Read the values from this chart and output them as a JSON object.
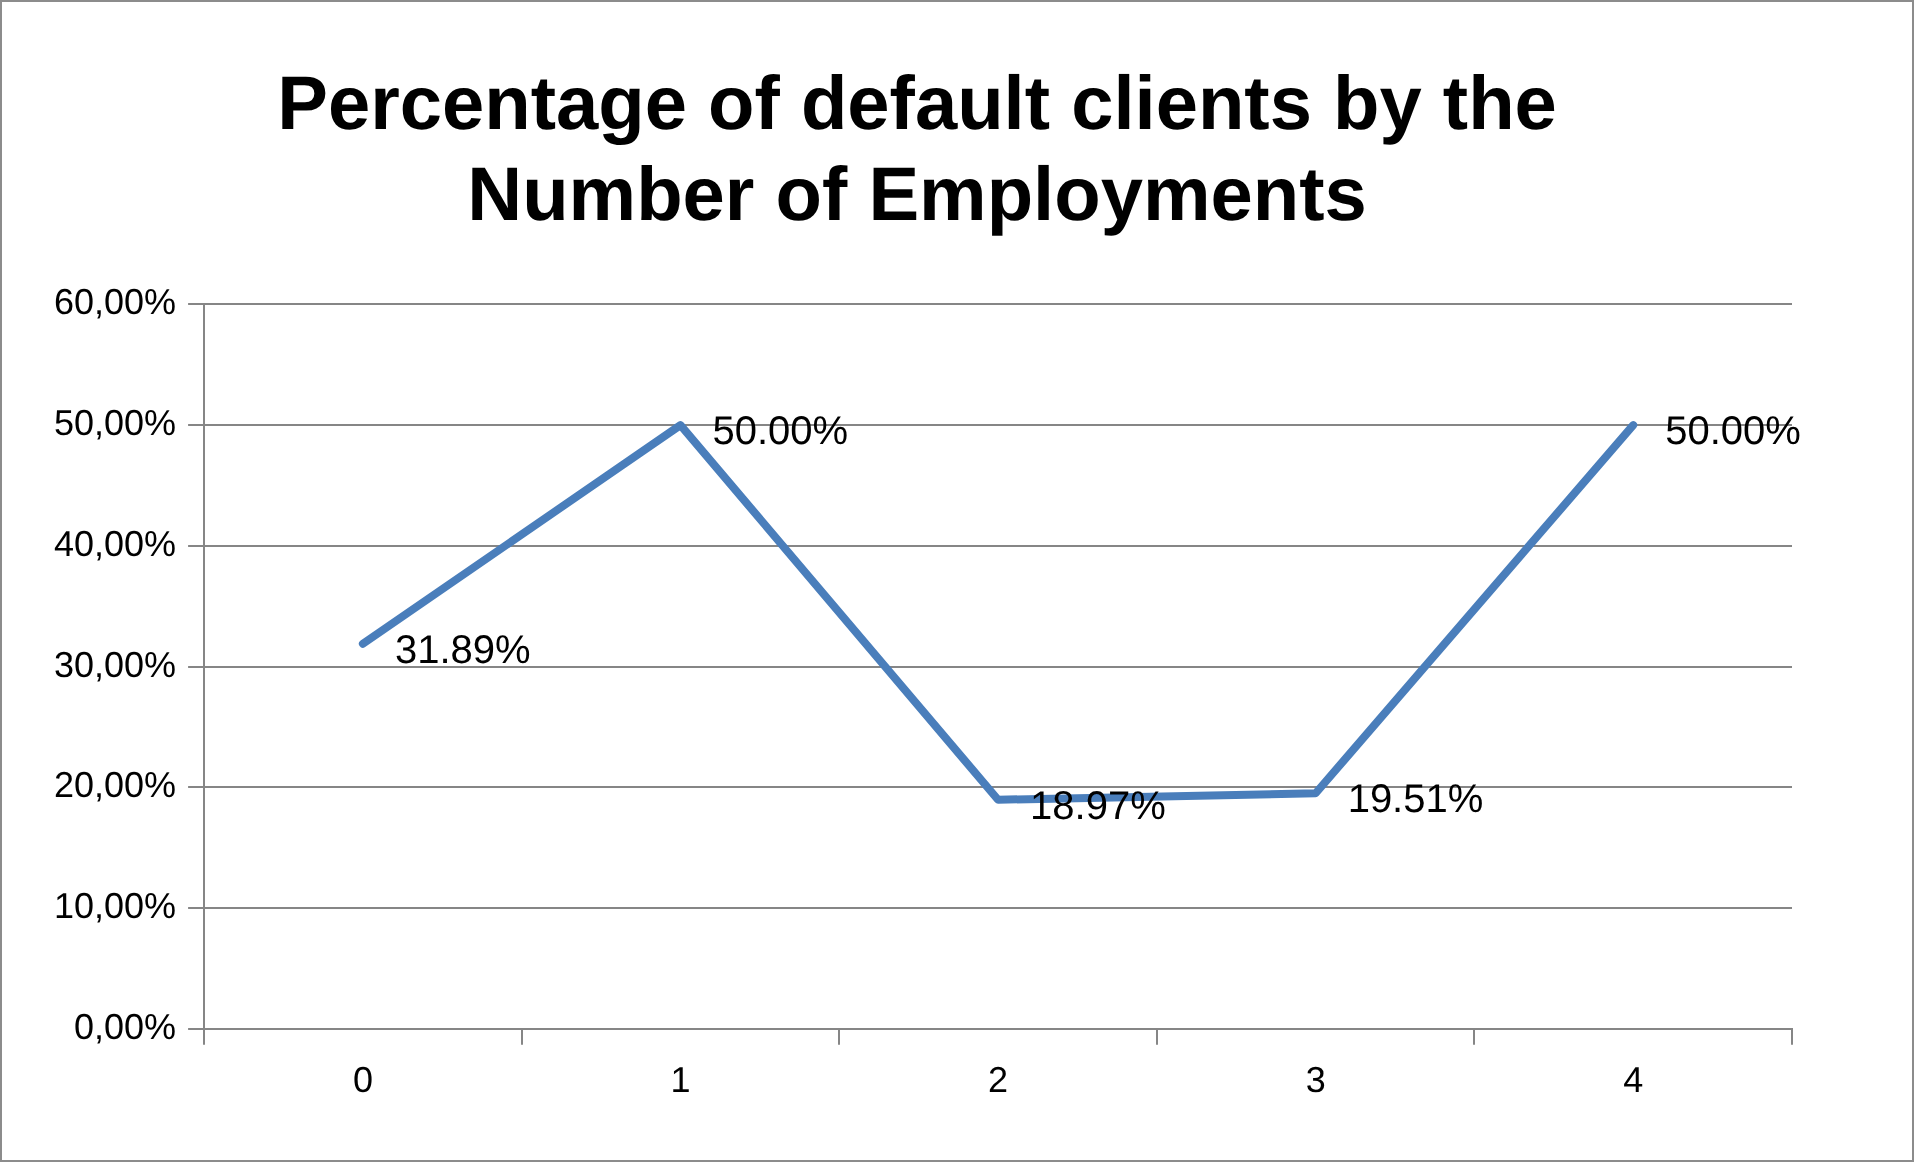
{
  "chart_data": {
    "type": "line",
    "title": "Percentage of default clients by the Number of Employments",
    "categories": [
      "0",
      "1",
      "2",
      "3",
      "4"
    ],
    "series": [
      {
        "color": "#4a7ebb",
        "values": [
          31.89,
          50.0,
          18.97,
          19.51,
          50.0
        ],
        "value_labels": [
          "31.89%",
          "50.00%",
          "18.97%",
          "19.51%",
          "50.00%"
        ]
      }
    ],
    "ylim": [
      0,
      60
    ],
    "yticks": [
      {
        "value": 0,
        "label": "0,00%"
      },
      {
        "value": 10,
        "label": "10,00%"
      },
      {
        "value": 20,
        "label": "20,00%"
      },
      {
        "value": 30,
        "label": "30,00%"
      },
      {
        "value": 40,
        "label": "40,00%"
      },
      {
        "value": 50,
        "label": "50,00%"
      },
      {
        "value": 60,
        "label": "60,00%"
      }
    ],
    "grid": "y",
    "legend": false,
    "marker": "none",
    "line_style": "solid"
  }
}
